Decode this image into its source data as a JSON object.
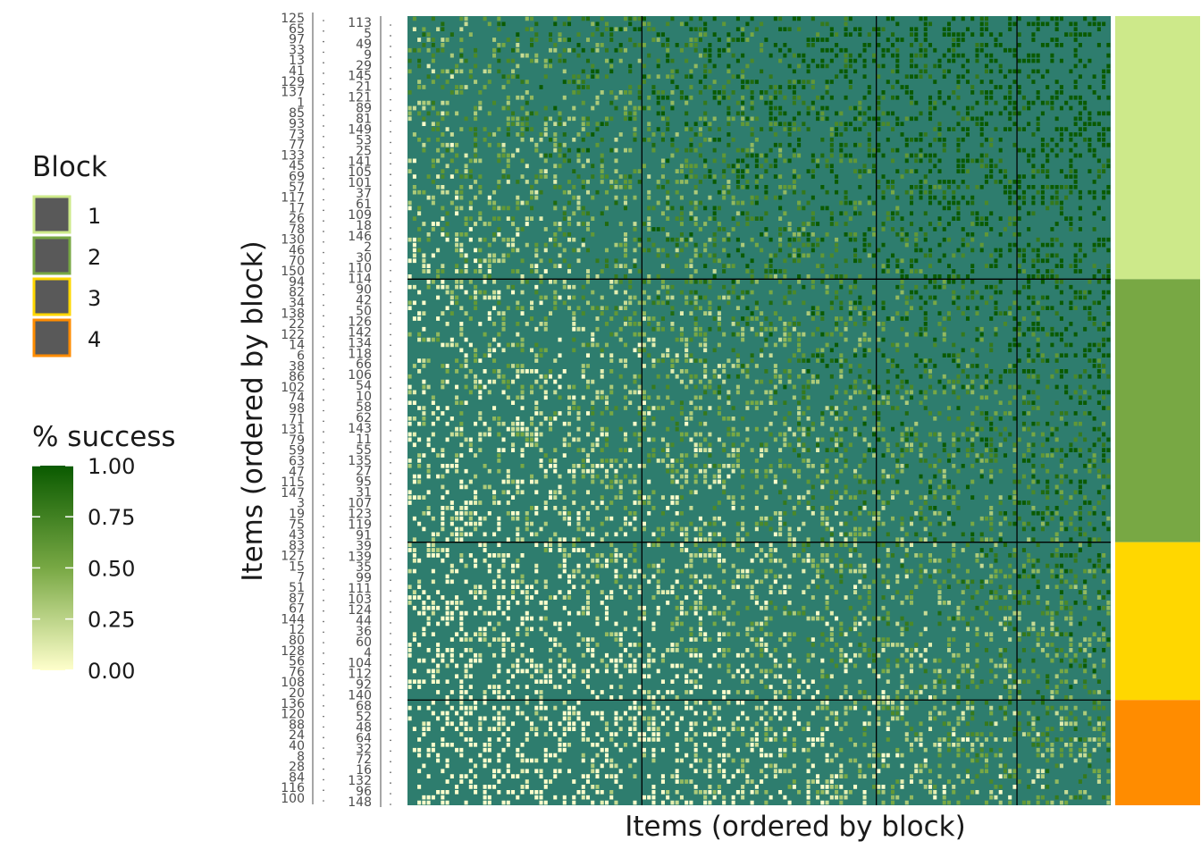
{
  "chart_data": {
    "type": "heatmap",
    "xlabel": "Items (ordered by block)",
    "ylabel": "Items (ordered by block)",
    "grid_size": 150,
    "block_boundaries": [
      50,
      100,
      130
    ],
    "cell_background_color": "#2e7d6e",
    "block_legend": {
      "title": "Block",
      "entries": [
        {
          "label": "1",
          "color": "#cde98a"
        },
        {
          "label": "2",
          "color": "#78a844"
        },
        {
          "label": "3",
          "color": "#ffd700"
        },
        {
          "label": "4",
          "color": "#ff8c00"
        }
      ]
    },
    "success_legend": {
      "title": "% success",
      "ticks": [
        "1.00",
        "0.75",
        "0.50",
        "0.25",
        "0.00"
      ],
      "low_color": "#ffffcc",
      "mid_color": "#78a844",
      "high_color": "#0a5a00"
    },
    "row_labels_left": [
      "125",
      "65",
      "97",
      "33",
      "13",
      "41",
      "129",
      "137",
      "1",
      "85",
      "93",
      "73",
      "77",
      "133",
      "45",
      "69",
      "57",
      "117",
      "17",
      "26",
      "78",
      "130",
      "46",
      "70",
      "150",
      "94",
      "82",
      "34",
      "138",
      "22",
      "122",
      "14",
      "6",
      "38",
      "86",
      "102",
      "74",
      "98",
      "71",
      "131",
      "79",
      "59",
      "63",
      "47",
      "115",
      "147",
      "3",
      "19",
      "75",
      "43",
      "83",
      "127",
      "15",
      "7",
      "51",
      "87",
      "67",
      "144",
      "12",
      "80",
      "128",
      "56",
      "76",
      "108",
      "20",
      "136",
      "120",
      "88",
      "24",
      "40",
      "8",
      "28",
      "84",
      "116",
      "100"
    ],
    "row_labels_right": [
      "113",
      "5",
      "49",
      "9",
      "29",
      "145",
      "21",
      "121",
      "89",
      "81",
      "149",
      "53",
      "25",
      "141",
      "105",
      "101",
      "37",
      "61",
      "109",
      "18",
      "146",
      "2",
      "30",
      "110",
      "114",
      "90",
      "42",
      "50",
      "126",
      "142",
      "134",
      "118",
      "66",
      "106",
      "54",
      "10",
      "58",
      "62",
      "143",
      "11",
      "55",
      "135",
      "27",
      "95",
      "31",
      "107",
      "123",
      "119",
      "91",
      "39",
      "139",
      "35",
      "99",
      "111",
      "103",
      "124",
      "44",
      "36",
      "60",
      "4",
      "104",
      "112",
      "92",
      "140",
      "68",
      "52",
      "48",
      "64",
      "32",
      "72",
      "16",
      "132",
      "96",
      "148"
    ]
  }
}
